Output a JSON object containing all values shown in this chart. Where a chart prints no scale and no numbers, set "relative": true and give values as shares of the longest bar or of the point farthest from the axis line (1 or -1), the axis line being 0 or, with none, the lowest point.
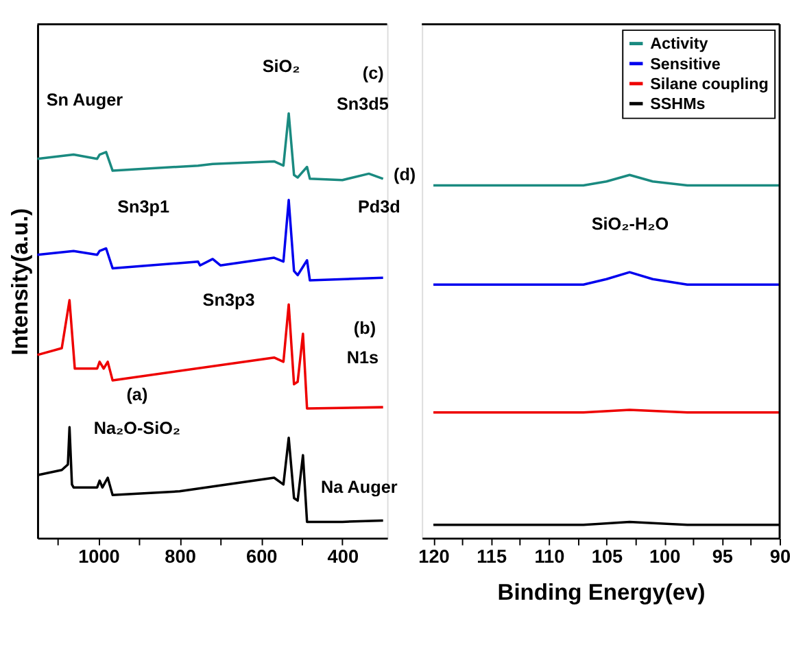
{
  "chart_data": [
    {
      "type": "line",
      "relative": true,
      "xlim": [
        1150,
        290
      ],
      "xticks": [
        {
          "value": 1100,
          "label": null
        },
        1000,
        {
          "value": 900,
          "label": null
        },
        800,
        {
          "value": 700,
          "label": null
        },
        600,
        {
          "value": 500,
          "label": null
        },
        400
      ],
      "ylabel": "Intensity(a.u.)",
      "tick_labels": "x",
      "grid": false,
      "legend": false,
      "marker": "none",
      "line_style": "solid",
      "series": [
        {
          "color": "#1a8a80",
          "x": [
            1150,
            1061,
            1003,
            997,
            981,
            965,
            755,
            719,
            568,
            545,
            532,
            519,
            510,
            487,
            480,
            400,
            335,
            300
          ],
          "values": [
            0.893,
            0.903,
            0.893,
            0.903,
            0.909,
            0.865,
            0.877,
            0.881,
            0.887,
            0.877,
            1.0,
            0.855,
            0.849,
            0.874,
            0.846,
            0.843,
            0.858,
            0.846
          ]
        },
        {
          "color": "#0000ee",
          "x": [
            1150,
            1061,
            1003,
            997,
            981,
            965,
            755,
            750,
            719,
            700,
            568,
            545,
            532,
            519,
            510,
            487,
            480,
            300
          ],
          "values": [
            0.667,
            0.676,
            0.667,
            0.676,
            0.682,
            0.635,
            0.651,
            0.642,
            0.657,
            0.642,
            0.66,
            0.651,
            0.796,
            0.629,
            0.619,
            0.654,
            0.607,
            0.613
          ]
        },
        {
          "color": "#ee0000",
          "x": [
            1150,
            1090,
            1071,
            1058,
            1003,
            997,
            987,
            977,
            965,
            568,
            545,
            532,
            519,
            510,
            497,
            487,
            300
          ],
          "values": [
            0.431,
            0.447,
            0.56,
            0.399,
            0.399,
            0.415,
            0.399,
            0.415,
            0.371,
            0.425,
            0.415,
            0.55,
            0.362,
            0.368,
            0.481,
            0.305,
            0.308
          ]
        },
        {
          "color": "#000000",
          "x": [
            1150,
            1090,
            1075,
            1071,
            1065,
            1061,
            1003,
            997,
            990,
            977,
            965,
            800,
            568,
            545,
            532,
            519,
            510,
            497,
            487,
            400,
            300
          ],
          "values": [
            0.148,
            0.16,
            0.173,
            0.261,
            0.126,
            0.119,
            0.119,
            0.135,
            0.119,
            0.142,
            0.101,
            0.11,
            0.142,
            0.126,
            0.236,
            0.094,
            0.088,
            0.195,
            0.038,
            0.038,
            0.041
          ]
        }
      ],
      "annotations": [
        "Sn Auger",
        "SiO₂",
        "(c)",
        "Sn3d5",
        "Sn3p1",
        "Pd3d",
        "(d)",
        "Sn3p3",
        "(b)",
        "N1s",
        "(a)",
        "Na₂O-SiO₂",
        "Na Auger"
      ]
    },
    {
      "type": "line",
      "relative": true,
      "xlim": [
        121,
        90
      ],
      "xticks": [
        120,
        {
          "value": 117.5,
          "label": null
        },
        115,
        {
          "value": 112.5,
          "label": null
        },
        110,
        {
          "value": 107.5,
          "label": null
        },
        105,
        {
          "value": 102.5,
          "label": null
        },
        100,
        {
          "value": 97.5,
          "label": null
        },
        95,
        {
          "value": 92.5,
          "label": null
        },
        90
      ],
      "xlabel": "Binding Energy(ev)",
      "tick_labels": "x",
      "grid": false,
      "legend": "top right",
      "marker": "none",
      "line_style": "solid",
      "series": [
        {
          "name": "Activity",
          "color": "#1a8a80",
          "x": [
            120,
            107,
            105,
            103,
            101,
            98,
            90
          ],
          "values": [
            0.971,
            0.971,
            0.982,
            1.0,
            0.982,
            0.971,
            0.971
          ]
        },
        {
          "name": "Sensitive",
          "color": "#0000ee",
          "x": [
            120,
            107,
            105,
            103,
            101,
            98,
            90
          ],
          "values": [
            0.698,
            0.698,
            0.713,
            0.732,
            0.713,
            0.698,
            0.698
          ]
        },
        {
          "name": "Silane coupling",
          "color": "#ee0000",
          "x": [
            120,
            107,
            103,
            98,
            90
          ],
          "values": [
            0.346,
            0.346,
            0.353,
            0.346,
            0.346
          ]
        },
        {
          "name": "SSHMs",
          "color": "#000000",
          "x": [
            120,
            107,
            103,
            98,
            90
          ],
          "values": [
            0.036,
            0.036,
            0.044,
            0.036,
            0.036
          ]
        }
      ],
      "annotations": [
        "SiO₂-H₂O"
      ]
    }
  ]
}
